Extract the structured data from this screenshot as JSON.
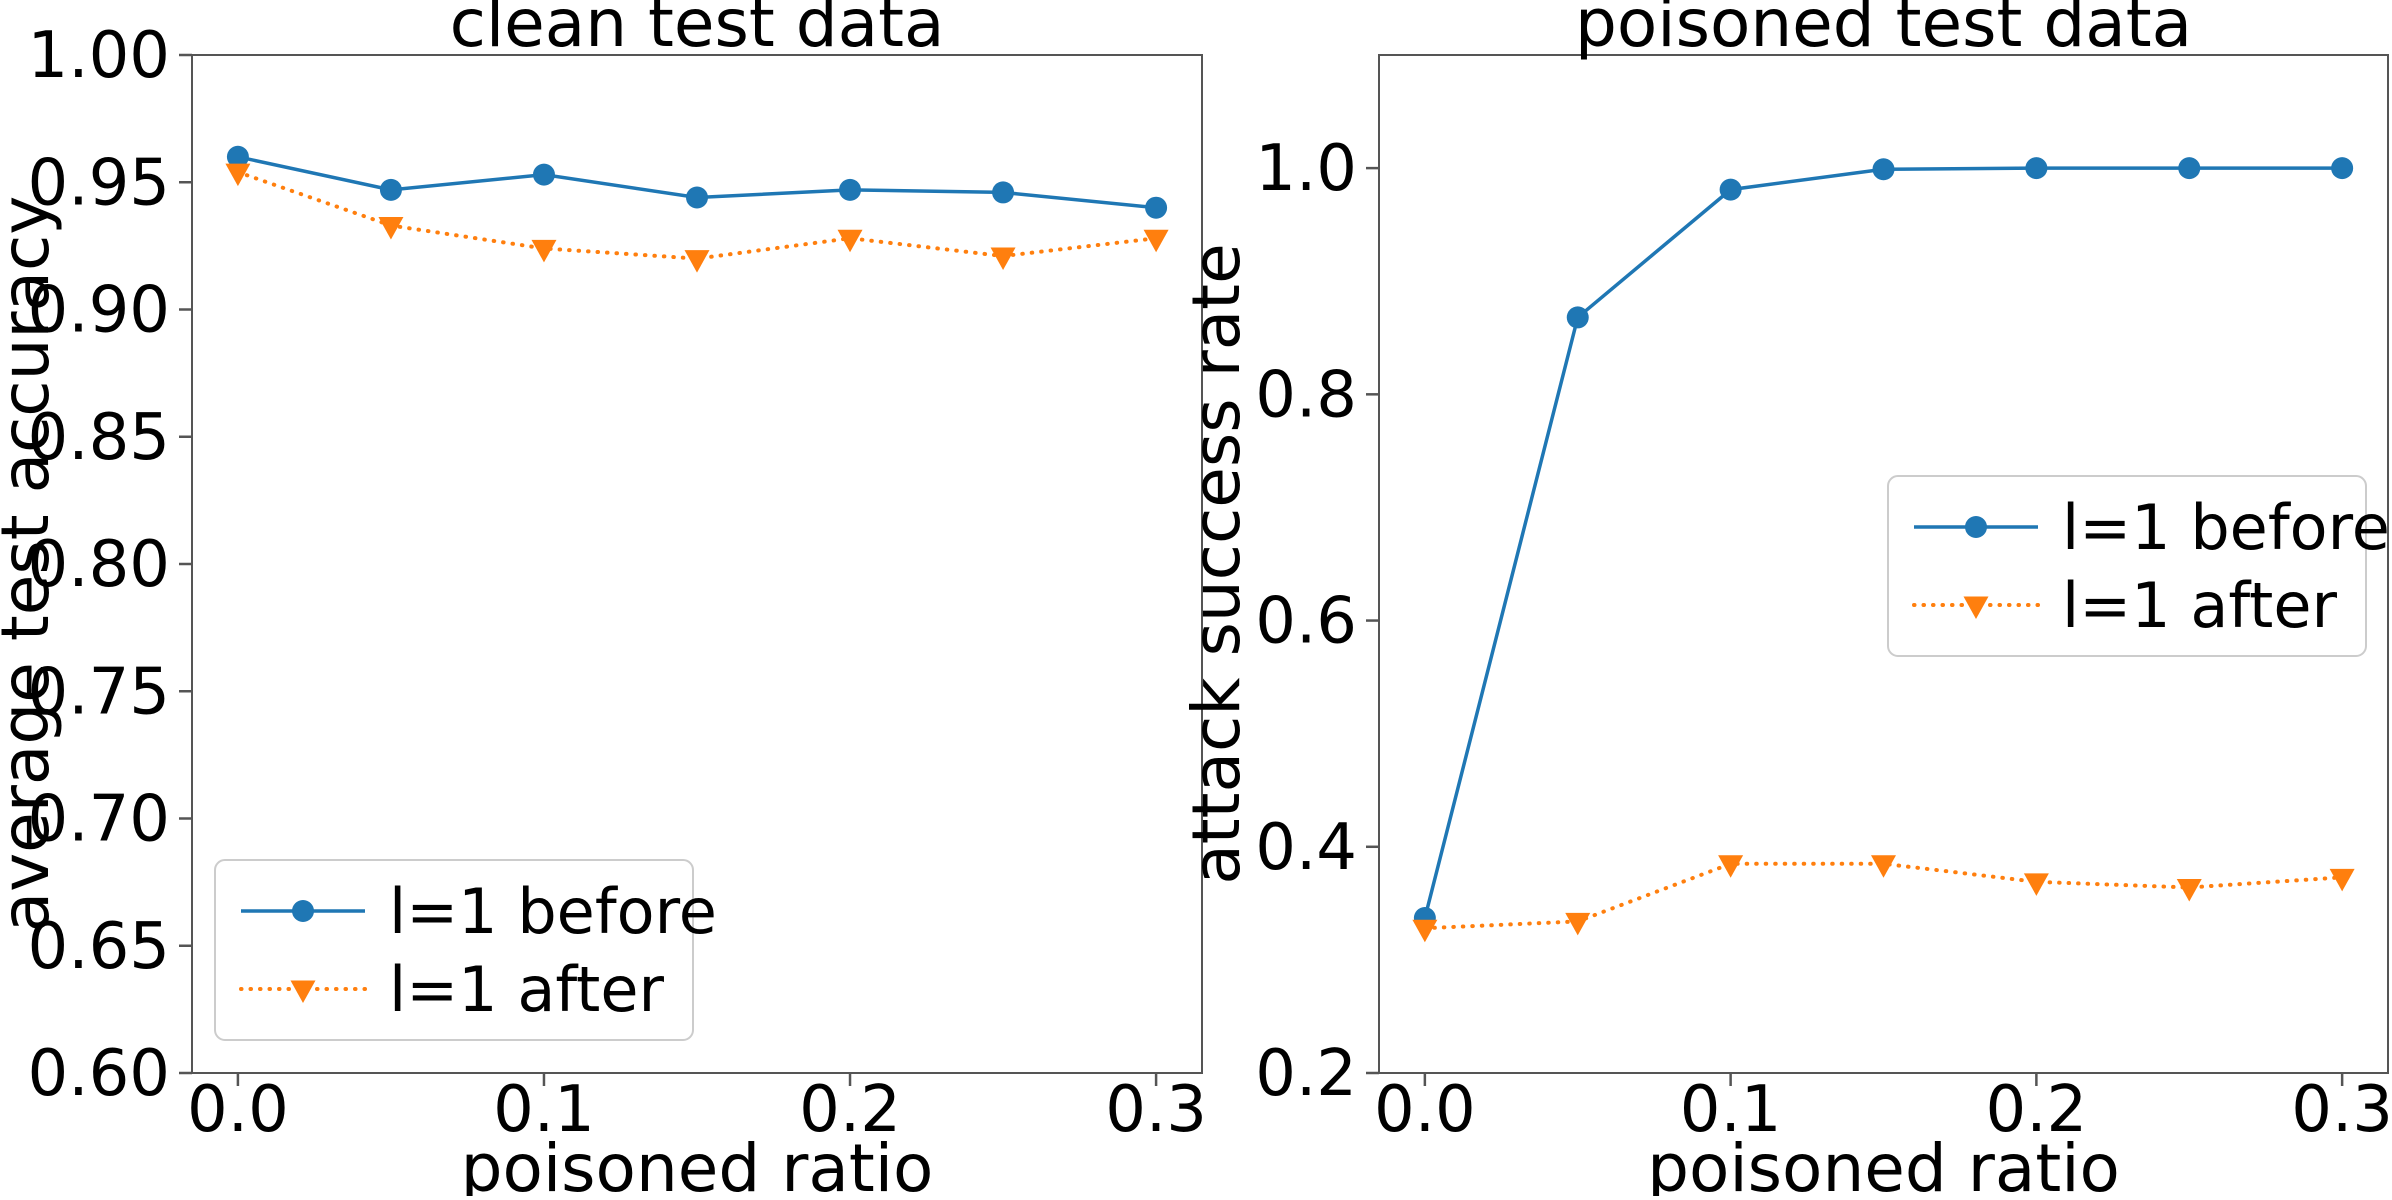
{
  "figure": {
    "background": "#ffffff",
    "text_color": "#000000",
    "spine_color": "#555555",
    "legend_border_color": "#cccccc",
    "legend_fill": "#ffffff"
  },
  "chart_data": [
    {
      "type": "line",
      "title": "clean test data",
      "xlabel": "poisoned ratio",
      "ylabel": "average test accuracy",
      "xlim": [
        -0.015,
        0.315
      ],
      "ylim": [
        0.6,
        1.0
      ],
      "grid": false,
      "legend_position": "lower-left",
      "x": [
        0.0,
        0.05,
        0.1,
        0.15,
        0.2,
        0.25,
        0.3
      ],
      "xticks": {
        "values": [
          0.0,
          0.1,
          0.2,
          0.3
        ],
        "labels": [
          "0.0",
          "0.1",
          "0.2",
          "0.3"
        ]
      },
      "yticks": {
        "values": [
          1.0,
          0.95,
          0.9,
          0.85,
          0.8,
          0.75,
          0.7,
          0.65,
          0.6
        ],
        "labels": [
          "1.00",
          "0.95",
          "0.90",
          "0.85",
          "0.80",
          "0.75",
          "0.70",
          "0.65",
          "0.60"
        ]
      },
      "series": [
        {
          "name": "l=1 before",
          "color": "#1f77b4",
          "line": "solid",
          "marker": "circle",
          "values": [
            0.96,
            0.947,
            0.953,
            0.944,
            0.947,
            0.946,
            0.94
          ]
        },
        {
          "name": "l=1 after",
          "color": "#ff7f0e",
          "line": "dotted",
          "marker": "triangle-down",
          "values": [
            0.954,
            0.933,
            0.924,
            0.92,
            0.928,
            0.921,
            0.928
          ]
        }
      ]
    },
    {
      "type": "line",
      "title": "poisoned test data",
      "xlabel": "poisoned ratio",
      "ylabel": "attack success rate",
      "xlim": [
        -0.015,
        0.315
      ],
      "ylim": [
        0.2,
        1.1
      ],
      "grid": false,
      "legend_position": "center-right",
      "x": [
        0.0,
        0.05,
        0.1,
        0.15,
        0.2,
        0.25,
        0.3
      ],
      "xticks": {
        "values": [
          0.0,
          0.1,
          0.2,
          0.3
        ],
        "labels": [
          "0.0",
          "0.1",
          "0.2",
          "0.3"
        ]
      },
      "yticks": {
        "values": [
          1.0,
          0.8,
          0.6,
          0.4,
          0.2
        ],
        "labels": [
          "1.0",
          "0.8",
          "0.6",
          "0.4",
          "0.2"
        ]
      },
      "series": [
        {
          "name": "l=1 before",
          "color": "#1f77b4",
          "line": "solid",
          "marker": "circle",
          "values": [
            0.337,
            0.868,
            0.981,
            0.999,
            1.0,
            1.0,
            1.0
          ]
        },
        {
          "name": "l=1 after",
          "color": "#ff7f0e",
          "line": "dotted",
          "marker": "triangle-down",
          "values": [
            0.328,
            0.334,
            0.385,
            0.385,
            0.369,
            0.364,
            0.373
          ]
        }
      ]
    }
  ]
}
